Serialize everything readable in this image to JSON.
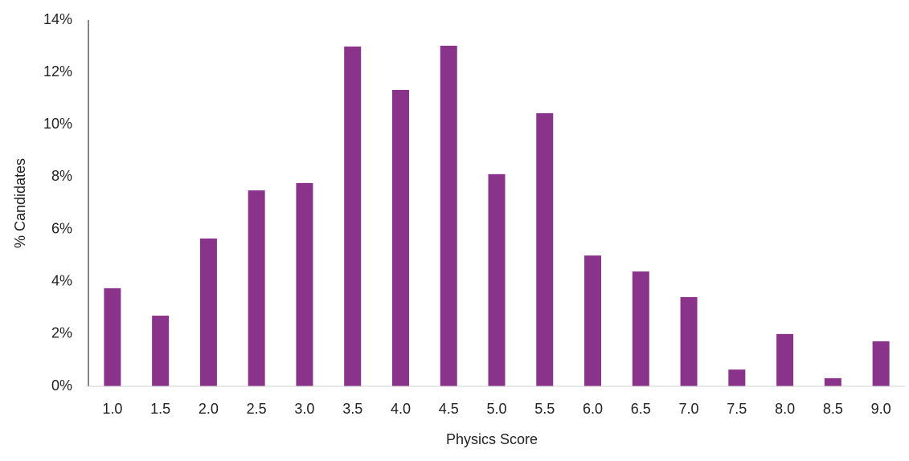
{
  "chart_data": {
    "type": "bar",
    "x_label": "Physics Score",
    "y_label": "% Candidates",
    "categories": [
      "1.0",
      "1.5",
      "2.0",
      "2.5",
      "3.0",
      "3.5",
      "4.0",
      "4.5",
      "5.0",
      "5.5",
      "6.0",
      "6.5",
      "7.0",
      "7.5",
      "8.0",
      "8.5",
      "9.0"
    ],
    "values": [
      3.75,
      2.7,
      5.65,
      7.49,
      7.77,
      12.99,
      11.33,
      13.02,
      8.11,
      10.44,
      5.0,
      4.39,
      3.41,
      0.64,
      2.0,
      0.31,
      1.72
    ],
    "color": "#8a338a",
    "ylim": [
      0,
      14
    ],
    "yticks": [
      {
        "value": 0,
        "label": "0%"
      },
      {
        "value": 2,
        "label": "2%"
      },
      {
        "value": 4,
        "label": "4%"
      },
      {
        "value": 6,
        "label": "6%"
      },
      {
        "value": 8,
        "label": "8%"
      },
      {
        "value": 10,
        "label": "10%"
      },
      {
        "value": 12,
        "label": "12%"
      },
      {
        "value": 14,
        "label": "14%"
      }
    ],
    "grid": false
  }
}
